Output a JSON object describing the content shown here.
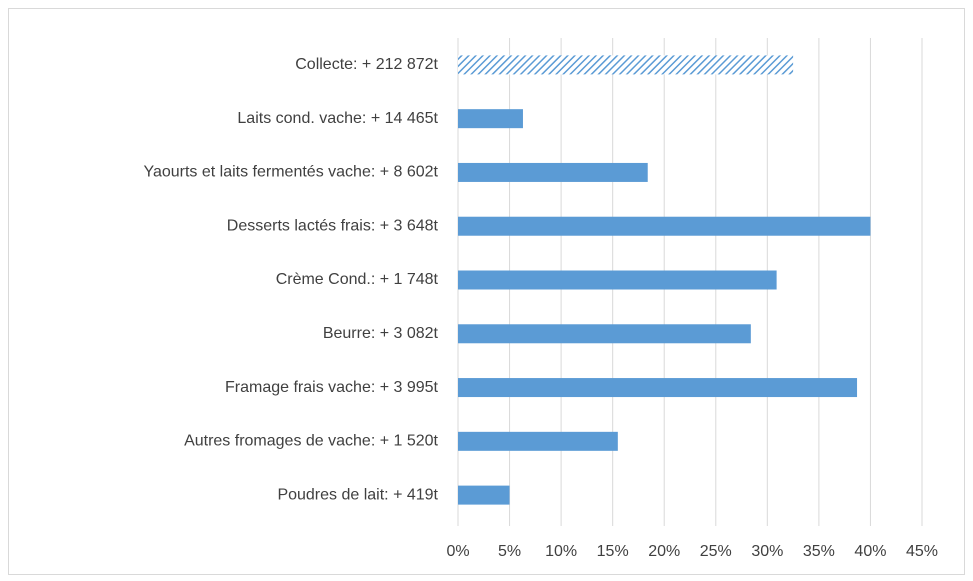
{
  "chart_data": {
    "type": "bar",
    "orientation": "horizontal",
    "categories": [
      "Collecte: + 212 872t",
      "Laits cond. vache: + 14 465t",
      "Yaourts et laits fermentés vache: + 8 602t",
      "Desserts lactés frais: + 3 648t",
      "Crème Cond.: + 1 748t",
      "Beurre: + 3 082t",
      "Framage frais vache: + 3 995t",
      "Autres fromages de vache: + 1 520t",
      "Poudres de lait: + 419t"
    ],
    "values": [
      32.5,
      6.3,
      18.4,
      40.0,
      30.9,
      28.4,
      38.7,
      15.5,
      5.0
    ],
    "patterns": [
      "hatch",
      "solid",
      "solid",
      "solid",
      "solid",
      "solid",
      "solid",
      "solid",
      "solid"
    ],
    "color": "#5b9bd5",
    "xlim": [
      0,
      45
    ],
    "xticks": [
      {
        "value": 0,
        "label": "0%"
      },
      {
        "value": 5,
        "label": "5%"
      },
      {
        "value": 10,
        "label": "10%"
      },
      {
        "value": 15,
        "label": "15%"
      },
      {
        "value": 20,
        "label": "20%"
      },
      {
        "value": 25,
        "label": "25%"
      },
      {
        "value": 30,
        "label": "30%"
      },
      {
        "value": 35,
        "label": "35%"
      },
      {
        "value": 40,
        "label": "40%"
      },
      {
        "value": 45,
        "label": "45%"
      }
    ],
    "grid": true
  }
}
